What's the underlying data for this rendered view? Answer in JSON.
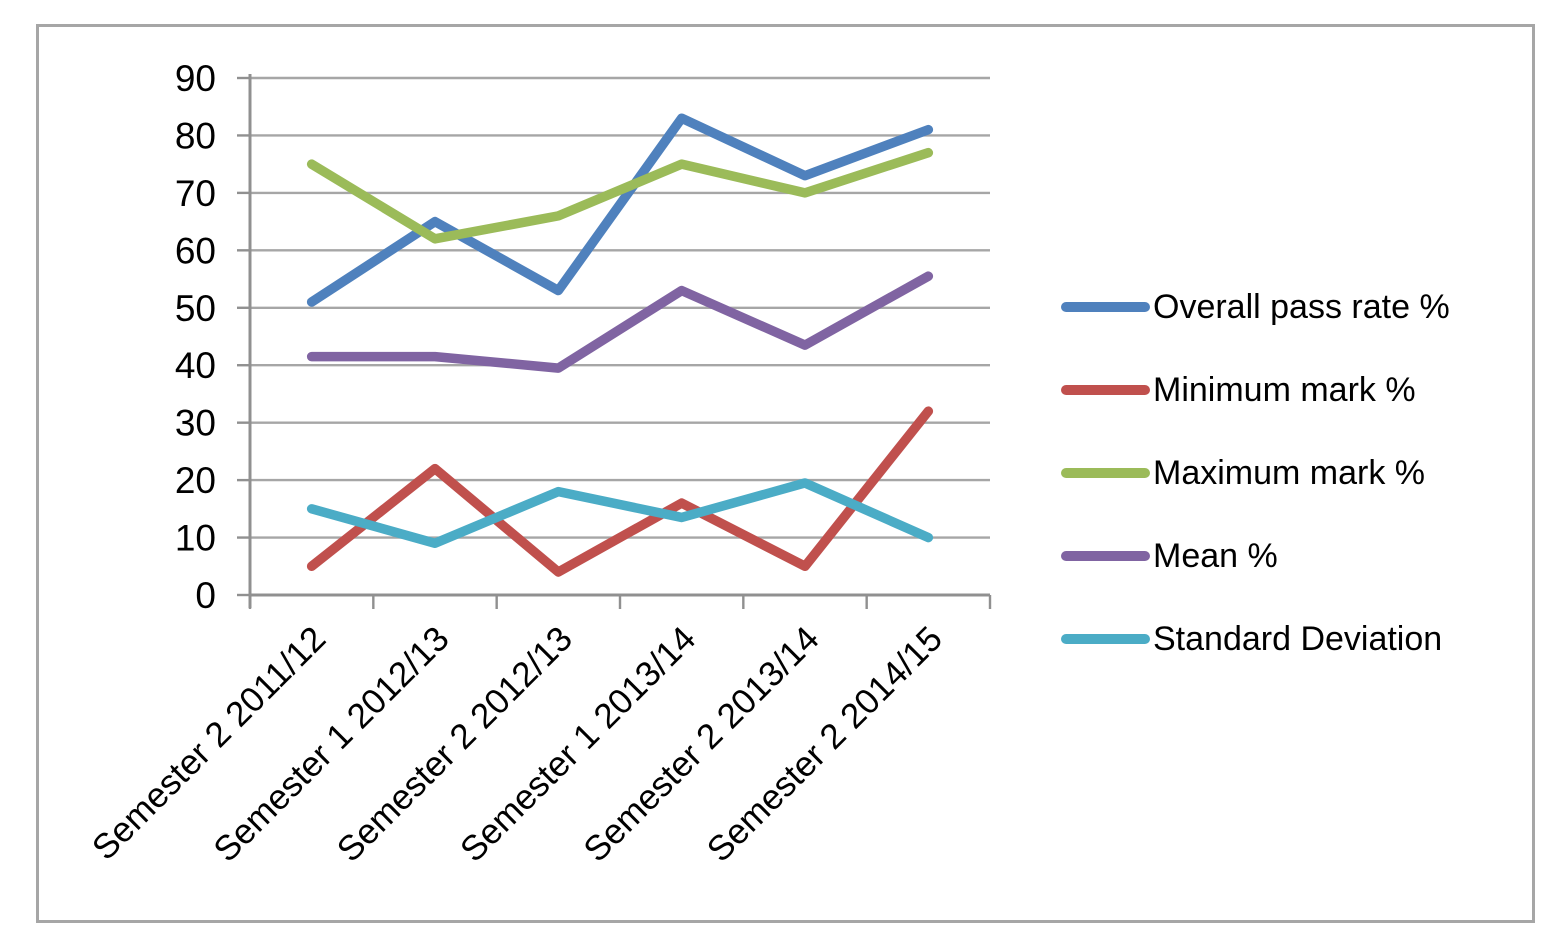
{
  "chart_data": {
    "type": "line",
    "categories": [
      "Semester 2 2011/12",
      "Semester 1 2012/13",
      "Semester 2 2012/13",
      "Semester 1 2013/14",
      "Semester 2 2013/14",
      "Semester 2 2014/15"
    ],
    "series": [
      {
        "name": "Overall pass rate %",
        "color": "#4F81BD",
        "values": [
          51,
          65,
          53,
          83,
          73,
          81
        ]
      },
      {
        "name": "Minimum mark %",
        "color": "#C0504D",
        "values": [
          5,
          22,
          4,
          16,
          5,
          32
        ]
      },
      {
        "name": "Maximum mark %",
        "color": "#9BBB59",
        "values": [
          75,
          62,
          66,
          75,
          70,
          77
        ]
      },
      {
        "name": "Mean %",
        "color": "#8064A2",
        "values": [
          41.5,
          41.5,
          39.5,
          53,
          43.5,
          55.5
        ]
      },
      {
        "name": "Standard Deviation",
        "color": "#4BACC6",
        "values": [
          15,
          9,
          18,
          13.5,
          19.5,
          10
        ]
      }
    ],
    "y_axis": {
      "min": 0,
      "max": 90,
      "step": 10,
      "tick_labels": [
        "0",
        "10",
        "20",
        "30",
        "40",
        "50",
        "60",
        "70",
        "80",
        "90"
      ]
    },
    "xlabel": "",
    "ylabel": "",
    "grid": true,
    "legend_position": "right"
  },
  "colors": {
    "gridline": "#A6A6A6",
    "axis": "#909090",
    "frame_border": "#A6A6A6",
    "text": "#000000",
    "background": "#FFFFFF"
  }
}
